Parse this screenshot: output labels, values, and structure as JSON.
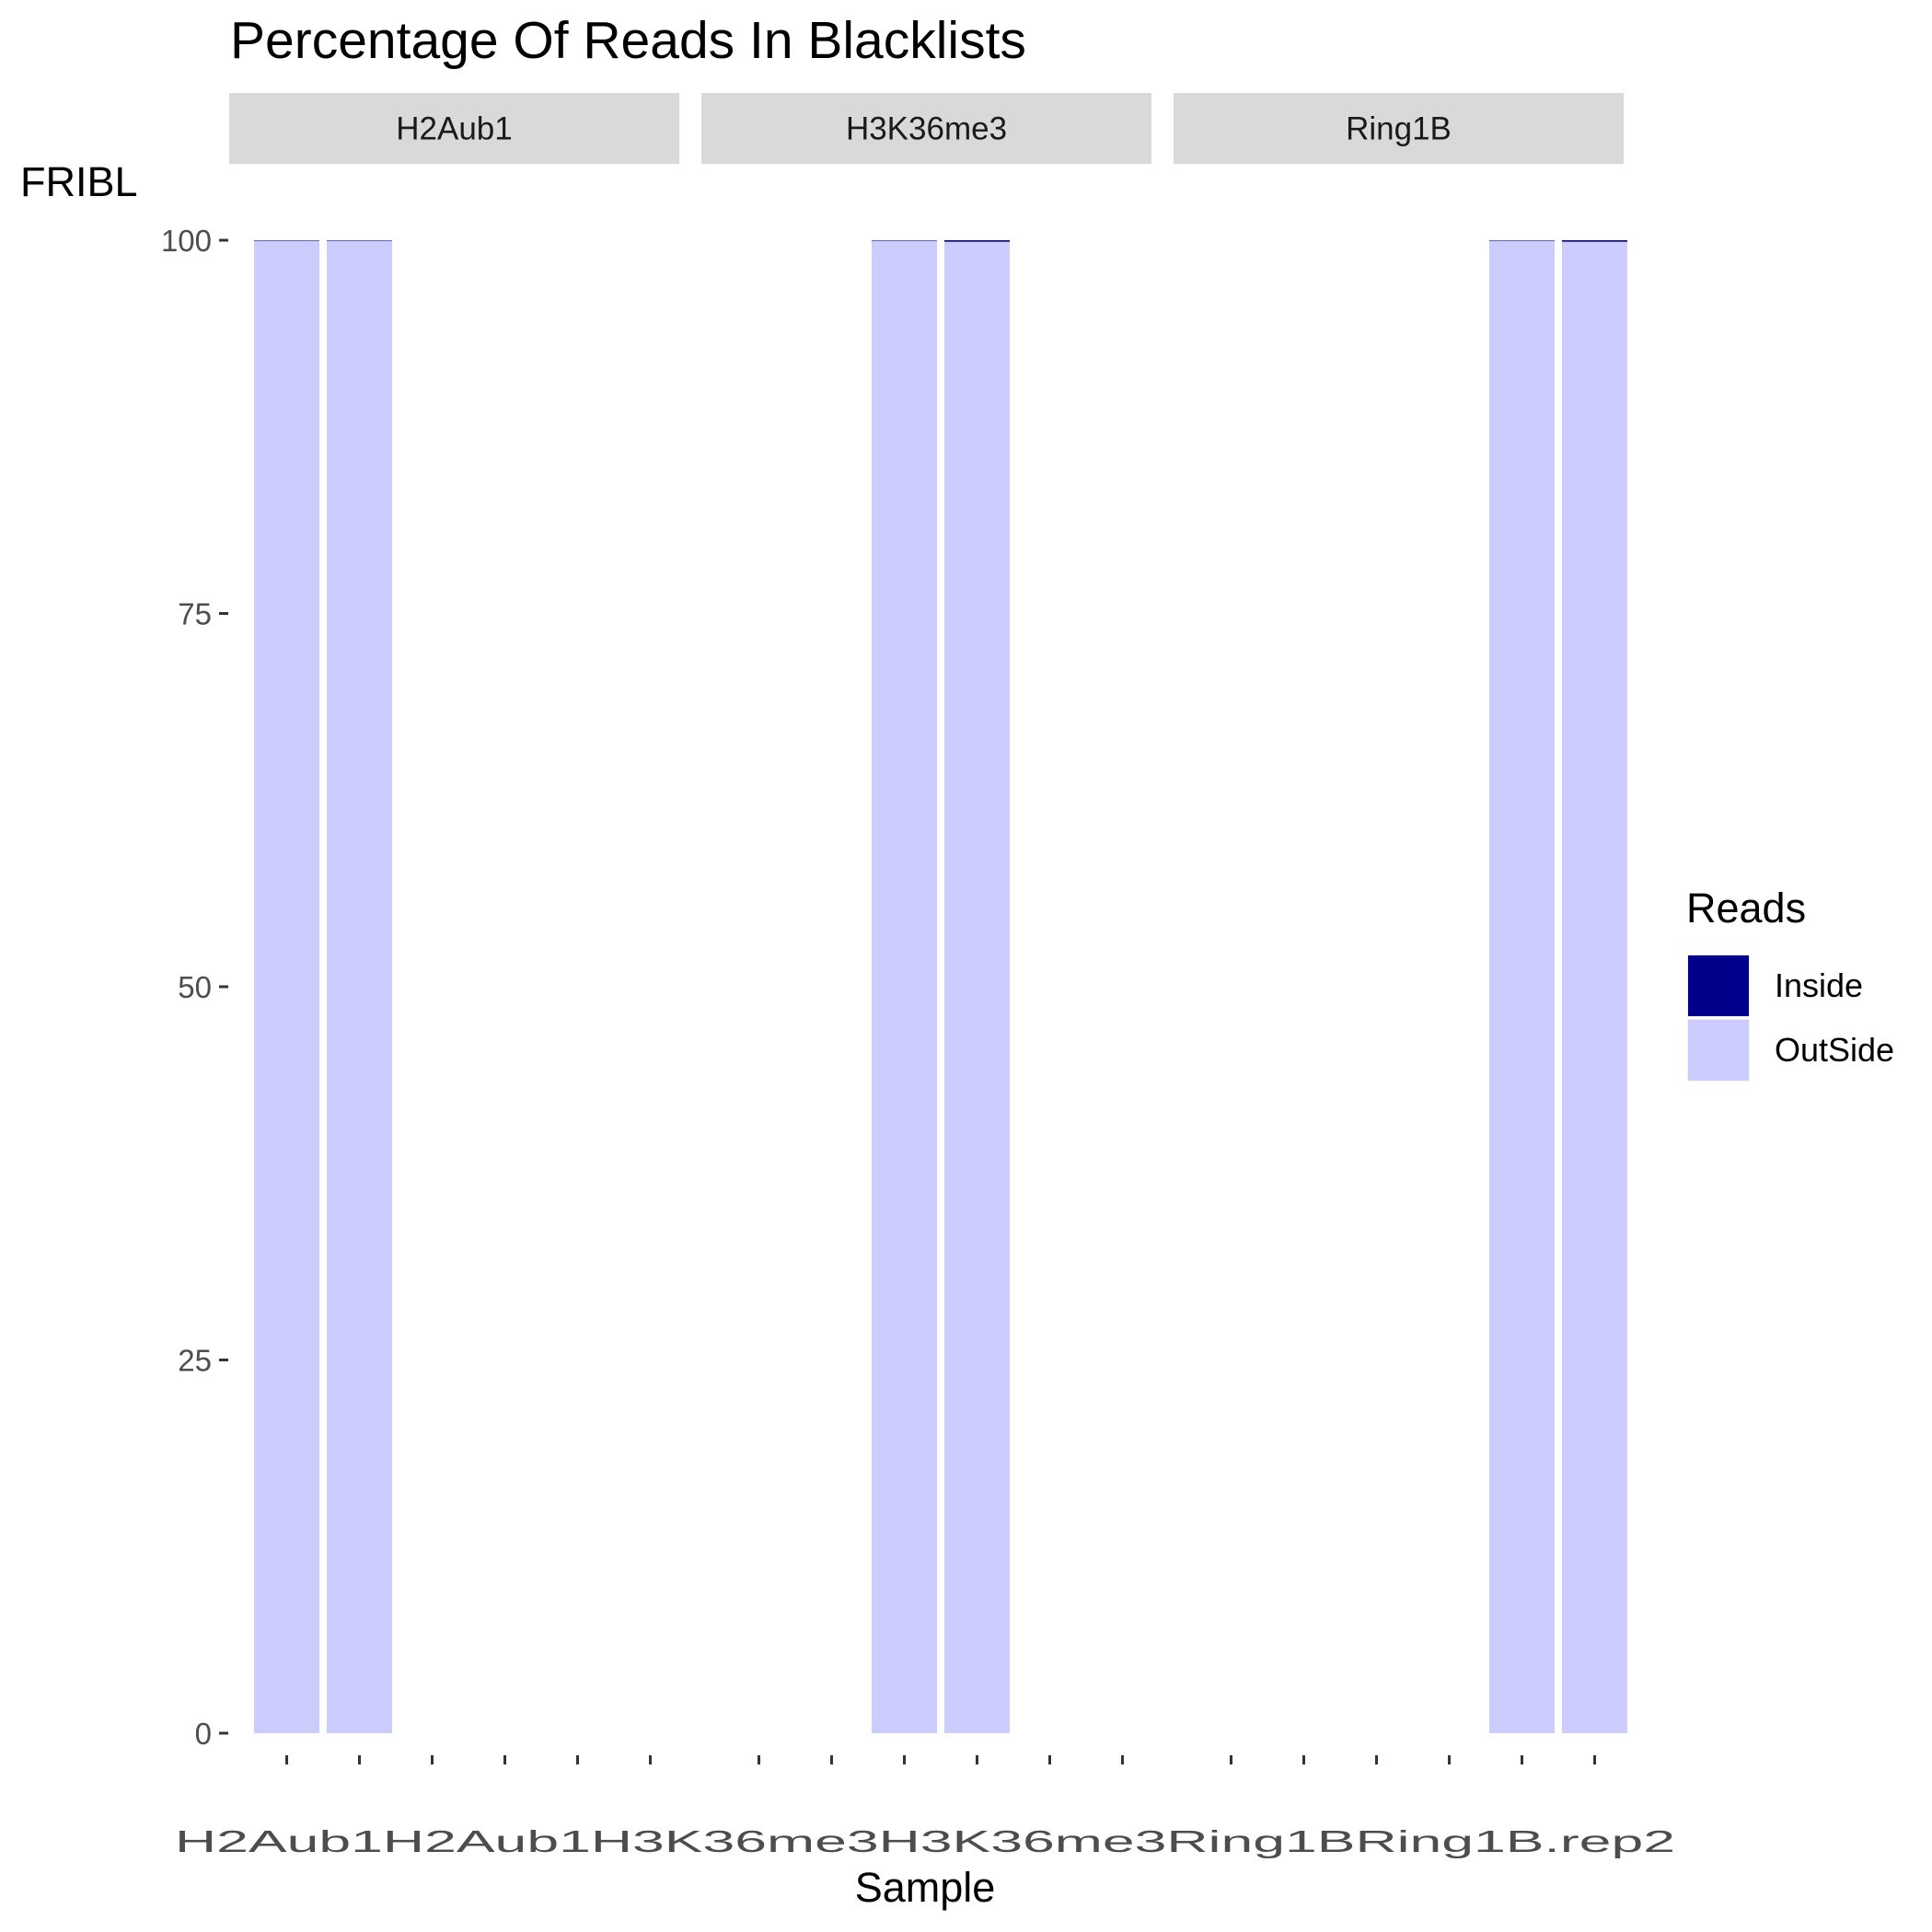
{
  "chart_data": {
    "type": "bar",
    "stacked": true,
    "title": "Percentage Of Reads In Blacklists",
    "xlabel": "Sample",
    "ylabel": "FRIBL",
    "ylim": [
      0,
      100
    ],
    "y_ticks": [
      0,
      25,
      50,
      75,
      100
    ],
    "grid": false,
    "facets": [
      "H2Aub1",
      "H3K36me3",
      "Ring1B"
    ],
    "categories": [
      "H2Aub1.rep1",
      "H2Aub1.rep2",
      "H3K36me3.rep1",
      "H3K36me3.rep2",
      "Ring1B.rep1",
      "Ring1B.rep2"
    ],
    "category_facet": [
      "H2Aub1",
      "H2Aub1",
      "H3K36me3",
      "H3K36me3",
      "Ring1B",
      "Ring1B"
    ],
    "x_tick_text": "H2Aub1H2Aub1H3K36me3H3K36me3Ring1BRing1B.rep2",
    "series": [
      {
        "name": "Inside",
        "color": "#00008B",
        "values": [
          0.02,
          0.02,
          0.03,
          0.1,
          0.03,
          0.1
        ]
      },
      {
        "name": "OutSide",
        "color": "#CCCCFF",
        "values": [
          99.98,
          99.98,
          99.97,
          99.9,
          99.97,
          99.9
        ]
      }
    ],
    "legend": {
      "title": "Reads",
      "position": "right",
      "entries": [
        "Inside",
        "OutSide"
      ]
    }
  }
}
